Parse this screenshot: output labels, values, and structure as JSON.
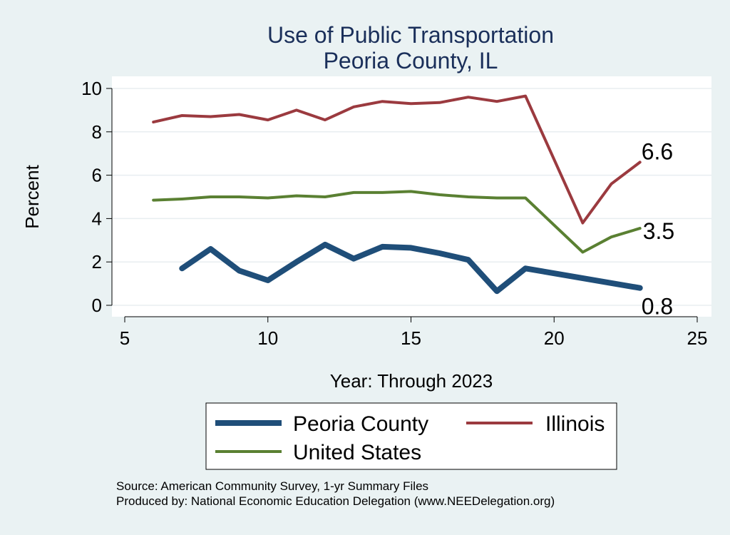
{
  "chart_data": {
    "type": "line",
    "title": "Use of Public Transportation",
    "subtitle": "Peoria County, IL",
    "xlabel": "Year: Through 2023",
    "ylabel": "Percent",
    "xlim": [
      5,
      25
    ],
    "ylim": [
      0,
      10
    ],
    "xticks": [
      5,
      10,
      15,
      20,
      25
    ],
    "yticks": [
      0,
      2,
      4,
      6,
      8,
      10
    ],
    "grid": true,
    "legend_position": "bottom",
    "series": [
      {
        "name": "Peoria County",
        "color": "#1f4e79",
        "x": [
          7,
          8,
          9,
          10,
          11,
          12,
          13,
          14,
          15,
          16,
          17,
          18,
          19,
          23
        ],
        "y": [
          1.7,
          2.6,
          1.6,
          1.15,
          2.0,
          2.8,
          2.15,
          2.7,
          2.65,
          2.4,
          2.1,
          0.65,
          1.7,
          0.8
        ],
        "end_label": "0.8"
      },
      {
        "name": "Illinois",
        "color": "#9b3a3f",
        "x": [
          6,
          7,
          8,
          9,
          10,
          11,
          12,
          13,
          14,
          15,
          16,
          17,
          18,
          19,
          21,
          22,
          23
        ],
        "y": [
          8.45,
          8.75,
          8.7,
          8.8,
          8.55,
          9.0,
          8.55,
          9.15,
          9.4,
          9.3,
          9.35,
          9.6,
          9.4,
          9.65,
          3.8,
          5.6,
          6.6
        ],
        "end_label": "6.6"
      },
      {
        "name": "United States",
        "color": "#5a8032",
        "x": [
          6,
          7,
          8,
          9,
          10,
          11,
          12,
          13,
          14,
          15,
          16,
          17,
          18,
          19,
          21,
          22,
          23
        ],
        "y": [
          4.85,
          4.9,
          5.0,
          5.0,
          4.95,
          5.05,
          5.0,
          5.2,
          5.2,
          5.25,
          5.1,
          5.0,
          4.95,
          4.95,
          2.45,
          3.15,
          3.55
        ],
        "end_label": "3.5"
      }
    ],
    "legend": [
      {
        "name": "Peoria County",
        "color": "#1f4e79"
      },
      {
        "name": "Illinois",
        "color": "#9b3a3f"
      },
      {
        "name": "United States",
        "color": "#5a8032"
      }
    ],
    "notes": [
      "Source: American Community Survey, 1-yr Summary Files",
      "Produced by: National Economic Education Delegation (www.NEEDelegation.org)"
    ]
  }
}
